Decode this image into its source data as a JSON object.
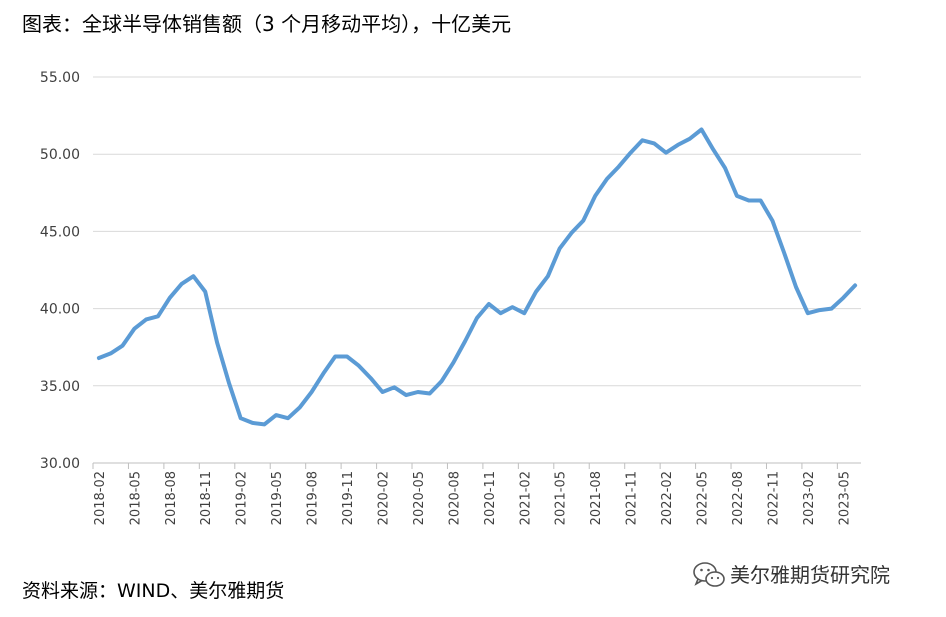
{
  "header": {
    "title": "图表：全球半导体销售额（3 个月移动平均），十亿美元"
  },
  "footer": {
    "source": "资料来源：WIND、美尔雅期货"
  },
  "watermark": {
    "text": "美尔雅期货研究院",
    "icon": "wechat-icon"
  },
  "colors": {
    "line": "#5b9bd5",
    "grid": "#d9d9d9",
    "axis": "#bfbfbf"
  },
  "chart_data": {
    "type": "line",
    "x_start": "2018-02",
    "x_tick_labels": [
      "2018-02",
      "2018-05",
      "2018-08",
      "2018-11",
      "2019-02",
      "2019-05",
      "2019-08",
      "2019-11",
      "2020-02",
      "2020-05",
      "2020-08",
      "2020-11",
      "2021-02",
      "2021-05",
      "2021-08",
      "2021-11",
      "2022-02",
      "2022-05",
      "2022-08",
      "2022-11",
      "2023-02",
      "2023-05"
    ],
    "y_tick_labels": [
      "30.00",
      "35.00",
      "40.00",
      "45.00",
      "50.00",
      "55.00"
    ],
    "ylim": [
      30,
      55
    ],
    "grid": true,
    "legend": "none",
    "series": [
      {
        "values": [
          36.8,
          37.1,
          37.6,
          38.7,
          39.3,
          39.5,
          40.7,
          41.6,
          42.1,
          41.1,
          37.8,
          35.2,
          32.9,
          32.6,
          32.5,
          33.1,
          32.9,
          33.6,
          34.6,
          35.8,
          36.9,
          36.9,
          36.3,
          35.5,
          34.6,
          34.9,
          34.4,
          34.6,
          34.5,
          35.3,
          36.5,
          37.9,
          39.4,
          40.3,
          39.7,
          40.1,
          39.7,
          41.1,
          42.1,
          43.9,
          44.9,
          45.7,
          47.3,
          48.4,
          49.2,
          50.1,
          50.9,
          50.7,
          50.1,
          50.6,
          51.0,
          51.6,
          50.3,
          49.1,
          47.3,
          47.0,
          47.0,
          45.7,
          43.6,
          41.4,
          39.7,
          39.9,
          40.0,
          40.7,
          41.5
        ]
      }
    ]
  }
}
